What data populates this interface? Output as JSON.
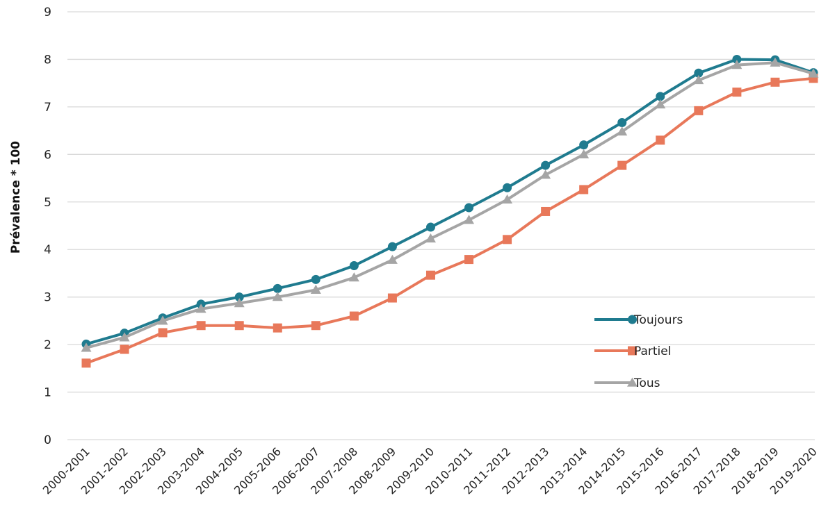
{
  "chart_data": {
    "type": "line",
    "title": "",
    "xlabel": "",
    "ylabel": "Prévalence * 100",
    "ylim": [
      0,
      9
    ],
    "yticks": [
      "0",
      "1",
      "2",
      "3",
      "4",
      "5",
      "6",
      "7",
      "8",
      "9"
    ],
    "grid": true,
    "legend_position": "right",
    "categories": [
      "2000-2001",
      "2001-2002",
      "2002-2003",
      "2003-2004",
      "2004-2005",
      "2005-2006",
      "2006-2007",
      "2007-2008",
      "2008-2009",
      "2009-2010",
      "2010-2011",
      "2011-2012",
      "2012-2013",
      "2013-2014",
      "2014-2015",
      "2015-2016",
      "2016-2017",
      "2017-2018",
      "2018-2019",
      "2019-2020"
    ],
    "series": [
      {
        "name": "Toujours",
        "color": "#1f7b8f",
        "marker": "circle",
        "values": [
          2.01,
          2.24,
          2.56,
          2.85,
          3.0,
          3.18,
          3.37,
          3.66,
          4.06,
          4.47,
          4.88,
          5.3,
          5.77,
          6.2,
          6.67,
          7.22,
          7.71,
          8.0,
          7.99,
          7.72
        ]
      },
      {
        "name": "Partiel",
        "color": "#e8785a",
        "marker": "square",
        "values": [
          1.61,
          1.9,
          2.25,
          2.4,
          2.4,
          2.35,
          2.4,
          2.6,
          2.98,
          3.46,
          3.79,
          4.21,
          4.8,
          5.26,
          5.77,
          6.3,
          6.92,
          7.31,
          7.52,
          7.6
        ]
      },
      {
        "name": "Tous",
        "color": "#a5a5a5",
        "marker": "triangle",
        "values": [
          1.93,
          2.15,
          2.5,
          2.75,
          2.87,
          3.0,
          3.15,
          3.41,
          3.78,
          4.23,
          4.62,
          5.05,
          5.57,
          6.0,
          6.48,
          7.05,
          7.56,
          7.88,
          7.93,
          7.7
        ]
      }
    ]
  }
}
